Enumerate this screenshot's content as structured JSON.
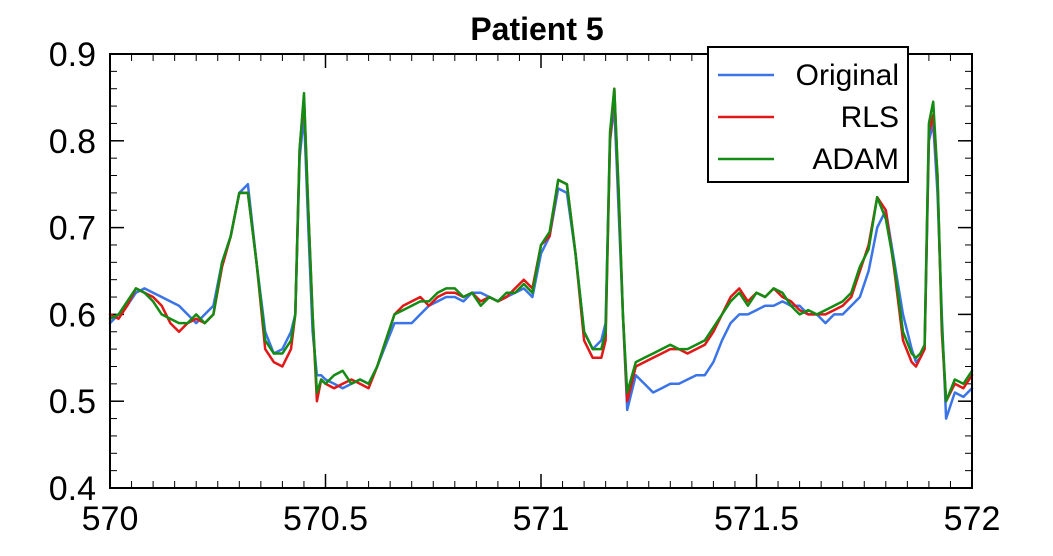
{
  "chart_data": {
    "type": "line",
    "title": "Patient 5",
    "xlabel": "",
    "ylabel": "",
    "xlim": [
      570,
      572
    ],
    "ylim": [
      0.4,
      0.9
    ],
    "xticks": [
      "570",
      "570.5",
      "571",
      "571.5",
      "572"
    ],
    "yticks": [
      "0.4",
      "0.5",
      "0.6",
      "0.7",
      "0.8",
      "0.9"
    ],
    "grid": false,
    "legend_position": "top-right",
    "x": [
      570.0,
      570.02,
      570.04,
      570.06,
      570.08,
      570.1,
      570.12,
      570.14,
      570.16,
      570.18,
      570.2,
      570.22,
      570.24,
      570.26,
      570.28,
      570.3,
      570.32,
      570.34,
      570.36,
      570.38,
      570.4,
      570.42,
      570.43,
      570.44,
      570.45,
      570.46,
      570.47,
      570.48,
      570.49,
      570.5,
      570.52,
      570.54,
      570.56,
      570.58,
      570.6,
      570.62,
      570.64,
      570.66,
      570.68,
      570.7,
      570.72,
      570.74,
      570.76,
      570.78,
      570.8,
      570.82,
      570.84,
      570.86,
      570.88,
      570.9,
      570.92,
      570.94,
      570.96,
      570.98,
      571.0,
      571.02,
      571.04,
      571.06,
      571.08,
      571.1,
      571.12,
      571.14,
      571.15,
      571.16,
      571.17,
      571.18,
      571.19,
      571.2,
      571.22,
      571.24,
      571.26,
      571.28,
      571.3,
      571.32,
      571.34,
      571.36,
      571.38,
      571.4,
      571.42,
      571.44,
      571.46,
      571.48,
      571.5,
      571.52,
      571.54,
      571.56,
      571.58,
      571.6,
      571.62,
      571.64,
      571.66,
      571.68,
      571.7,
      571.72,
      571.74,
      571.76,
      571.78,
      571.8,
      571.82,
      571.84,
      571.86,
      571.87,
      571.88,
      571.89,
      571.9,
      571.91,
      571.92,
      571.93,
      571.94,
      571.96,
      571.98,
      572.0
    ],
    "series": [
      {
        "name": "Original",
        "color": "#3a74e8",
        "values": [
          0.59,
          0.6,
          0.61,
          0.625,
          0.63,
          0.625,
          0.62,
          0.615,
          0.61,
          0.6,
          0.59,
          0.6,
          0.61,
          0.66,
          0.69,
          0.74,
          0.75,
          0.66,
          0.58,
          0.555,
          0.56,
          0.58,
          0.6,
          0.78,
          0.83,
          0.7,
          0.58,
          0.53,
          0.53,
          0.525,
          0.52,
          0.515,
          0.52,
          0.525,
          0.52,
          0.54,
          0.565,
          0.59,
          0.59,
          0.59,
          0.6,
          0.61,
          0.615,
          0.62,
          0.62,
          0.615,
          0.625,
          0.625,
          0.62,
          0.615,
          0.62,
          0.625,
          0.63,
          0.62,
          0.67,
          0.69,
          0.745,
          0.74,
          0.67,
          0.58,
          0.56,
          0.57,
          0.59,
          0.8,
          0.84,
          0.72,
          0.6,
          0.49,
          0.53,
          0.52,
          0.51,
          0.515,
          0.52,
          0.52,
          0.525,
          0.53,
          0.53,
          0.545,
          0.57,
          0.59,
          0.6,
          0.6,
          0.605,
          0.61,
          0.61,
          0.615,
          0.61,
          0.61,
          0.6,
          0.6,
          0.59,
          0.6,
          0.6,
          0.61,
          0.62,
          0.65,
          0.7,
          0.72,
          0.66,
          0.6,
          0.56,
          0.545,
          0.55,
          0.56,
          0.8,
          0.82,
          0.74,
          0.6,
          0.48,
          0.51,
          0.505,
          0.515
        ]
      },
      {
        "name": "RLS",
        "color": "#e01818",
        "values": [
          0.6,
          0.595,
          0.61,
          0.63,
          0.625,
          0.62,
          0.61,
          0.59,
          0.58,
          0.59,
          0.595,
          0.59,
          0.6,
          0.655,
          0.69,
          0.74,
          0.74,
          0.66,
          0.56,
          0.545,
          0.54,
          0.56,
          0.6,
          0.79,
          0.85,
          0.72,
          0.6,
          0.5,
          0.525,
          0.52,
          0.515,
          0.52,
          0.525,
          0.52,
          0.515,
          0.54,
          0.57,
          0.6,
          0.61,
          0.615,
          0.62,
          0.61,
          0.62,
          0.625,
          0.625,
          0.62,
          0.625,
          0.615,
          0.62,
          0.615,
          0.62,
          0.63,
          0.64,
          0.63,
          0.68,
          0.69,
          0.755,
          0.75,
          0.67,
          0.57,
          0.55,
          0.55,
          0.57,
          0.8,
          0.86,
          0.74,
          0.6,
          0.5,
          0.54,
          0.545,
          0.55,
          0.555,
          0.56,
          0.56,
          0.555,
          0.56,
          0.565,
          0.58,
          0.6,
          0.62,
          0.63,
          0.615,
          0.625,
          0.62,
          0.63,
          0.62,
          0.615,
          0.605,
          0.6,
          0.6,
          0.6,
          0.605,
          0.61,
          0.62,
          0.65,
          0.68,
          0.735,
          0.72,
          0.65,
          0.57,
          0.545,
          0.54,
          0.55,
          0.56,
          0.81,
          0.83,
          0.76,
          0.58,
          0.5,
          0.52,
          0.515,
          0.53
        ]
      },
      {
        "name": "ADAM",
        "color": "#138c13",
        "values": [
          0.595,
          0.6,
          0.615,
          0.63,
          0.625,
          0.615,
          0.6,
          0.595,
          0.59,
          0.59,
          0.6,
          0.59,
          0.6,
          0.66,
          0.69,
          0.74,
          0.74,
          0.66,
          0.57,
          0.555,
          0.555,
          0.57,
          0.6,
          0.79,
          0.855,
          0.72,
          0.6,
          0.51,
          0.525,
          0.52,
          0.53,
          0.535,
          0.52,
          0.525,
          0.52,
          0.54,
          0.57,
          0.6,
          0.605,
          0.61,
          0.615,
          0.615,
          0.625,
          0.63,
          0.63,
          0.62,
          0.625,
          0.61,
          0.62,
          0.615,
          0.625,
          0.625,
          0.635,
          0.625,
          0.68,
          0.695,
          0.755,
          0.75,
          0.67,
          0.58,
          0.56,
          0.56,
          0.58,
          0.81,
          0.86,
          0.745,
          0.6,
          0.51,
          0.545,
          0.55,
          0.555,
          0.56,
          0.565,
          0.56,
          0.56,
          0.565,
          0.57,
          0.585,
          0.6,
          0.615,
          0.625,
          0.61,
          0.625,
          0.62,
          0.63,
          0.625,
          0.61,
          0.6,
          0.605,
          0.6,
          0.605,
          0.61,
          0.615,
          0.625,
          0.655,
          0.675,
          0.735,
          0.71,
          0.655,
          0.58,
          0.555,
          0.55,
          0.555,
          0.565,
          0.82,
          0.845,
          0.76,
          0.59,
          0.5,
          0.525,
          0.52,
          0.535
        ]
      }
    ]
  }
}
